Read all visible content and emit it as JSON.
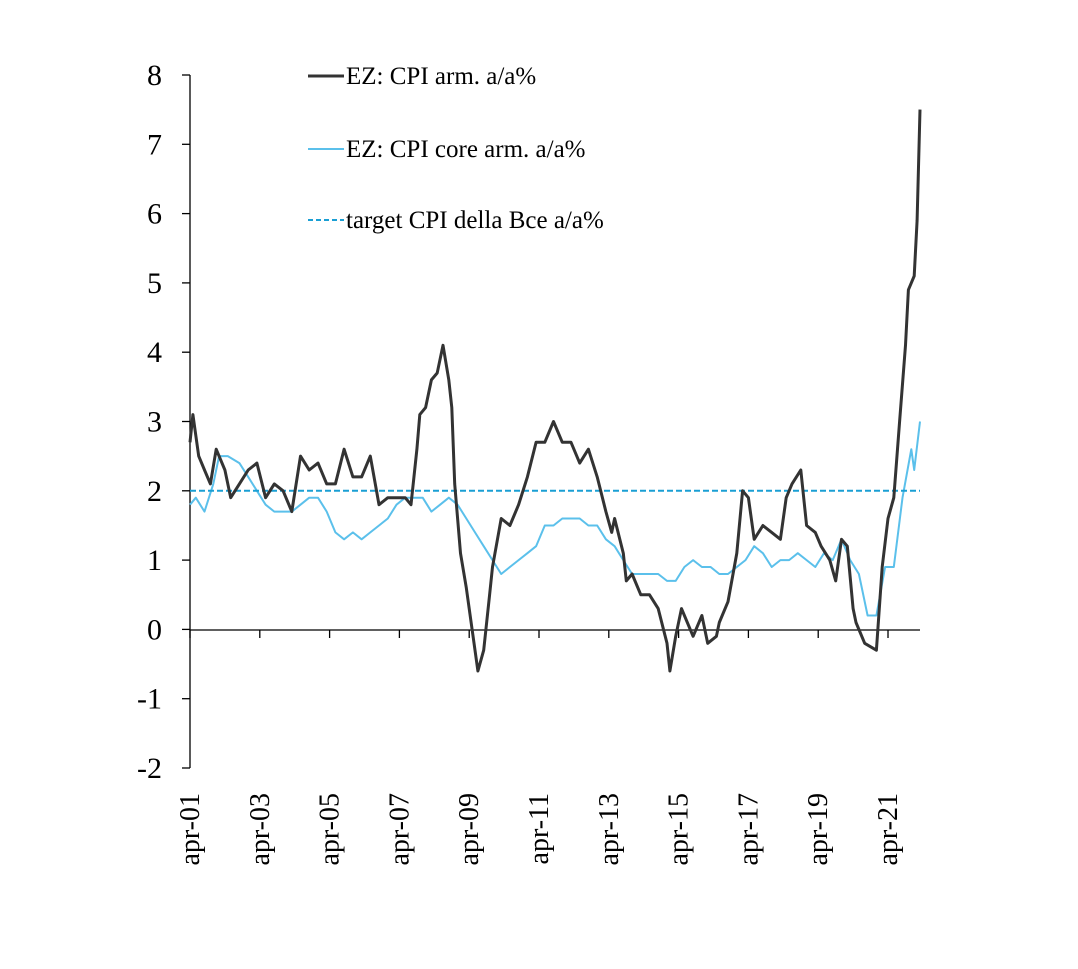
{
  "chart_data": {
    "type": "line",
    "title": "",
    "xlabel": "",
    "ylabel": "",
    "ylim": [
      -2,
      8
    ],
    "yticks": [
      "8",
      "7",
      "6",
      "5",
      "4",
      "3",
      "2",
      "1",
      "0",
      "-1",
      "-2"
    ],
    "x_range": [
      "2001-04",
      "2022-03"
    ],
    "xticks": [
      "apr-01",
      "apr-03",
      "apr-05",
      "apr-07",
      "apr-09",
      "apr-11",
      "apr-13",
      "apr-15",
      "apr-17",
      "apr-19",
      "apr-21"
    ],
    "grid": false,
    "legend_position": "top",
    "series": [
      {
        "name": "EZ: CPI arm. a/a%",
        "color": "#333333",
        "style": "solid",
        "points": [
          [
            "2001-04",
            2.7
          ],
          [
            "2001-05",
            3.1
          ],
          [
            "2001-06",
            2.8
          ],
          [
            "2001-07",
            2.5
          ],
          [
            "2001-09",
            2.3
          ],
          [
            "2001-11",
            2.1
          ],
          [
            "2002-01",
            2.6
          ],
          [
            "2002-04",
            2.3
          ],
          [
            "2002-06",
            1.9
          ],
          [
            "2002-09",
            2.1
          ],
          [
            "2002-12",
            2.3
          ],
          [
            "2003-03",
            2.4
          ],
          [
            "2003-06",
            1.9
          ],
          [
            "2003-09",
            2.1
          ],
          [
            "2003-12",
            2.0
          ],
          [
            "2004-03",
            1.7
          ],
          [
            "2004-06",
            2.5
          ],
          [
            "2004-09",
            2.3
          ],
          [
            "2004-12",
            2.4
          ],
          [
            "2005-03",
            2.1
          ],
          [
            "2005-06",
            2.1
          ],
          [
            "2005-09",
            2.6
          ],
          [
            "2005-12",
            2.2
          ],
          [
            "2006-03",
            2.2
          ],
          [
            "2006-06",
            2.5
          ],
          [
            "2006-09",
            1.8
          ],
          [
            "2006-12",
            1.9
          ],
          [
            "2007-03",
            1.9
          ],
          [
            "2007-06",
            1.9
          ],
          [
            "2007-08",
            1.8
          ],
          [
            "2007-10",
            2.6
          ],
          [
            "2007-11",
            3.1
          ],
          [
            "2008-01",
            3.2
          ],
          [
            "2008-03",
            3.6
          ],
          [
            "2008-05",
            3.7
          ],
          [
            "2008-07",
            4.1
          ],
          [
            "2008-09",
            3.6
          ],
          [
            "2008-10",
            3.2
          ],
          [
            "2008-11",
            2.1
          ],
          [
            "2008-12",
            1.6
          ],
          [
            "2009-01",
            1.1
          ],
          [
            "2009-03",
            0.6
          ],
          [
            "2009-05",
            0.0
          ],
          [
            "2009-07",
            -0.6
          ],
          [
            "2009-09",
            -0.3
          ],
          [
            "2009-11",
            0.5
          ],
          [
            "2009-12",
            0.9
          ],
          [
            "2010-03",
            1.6
          ],
          [
            "2010-06",
            1.5
          ],
          [
            "2010-09",
            1.8
          ],
          [
            "2010-12",
            2.2
          ],
          [
            "2011-03",
            2.7
          ],
          [
            "2011-06",
            2.7
          ],
          [
            "2011-09",
            3.0
          ],
          [
            "2011-12",
            2.7
          ],
          [
            "2012-03",
            2.7
          ],
          [
            "2012-06",
            2.4
          ],
          [
            "2012-09",
            2.6
          ],
          [
            "2012-12",
            2.2
          ],
          [
            "2013-03",
            1.7
          ],
          [
            "2013-05",
            1.4
          ],
          [
            "2013-06",
            1.6
          ],
          [
            "2013-09",
            1.1
          ],
          [
            "2013-10",
            0.7
          ],
          [
            "2013-12",
            0.8
          ],
          [
            "2014-03",
            0.5
          ],
          [
            "2014-06",
            0.5
          ],
          [
            "2014-09",
            0.3
          ],
          [
            "2014-12",
            -0.2
          ],
          [
            "2015-01",
            -0.6
          ],
          [
            "2015-03",
            -0.1
          ],
          [
            "2015-05",
            0.3
          ],
          [
            "2015-06",
            0.2
          ],
          [
            "2015-09",
            -0.1
          ],
          [
            "2015-12",
            0.2
          ],
          [
            "2016-02",
            -0.2
          ],
          [
            "2016-05",
            -0.1
          ],
          [
            "2016-06",
            0.1
          ],
          [
            "2016-09",
            0.4
          ],
          [
            "2016-12",
            1.1
          ],
          [
            "2017-02",
            2.0
          ],
          [
            "2017-04",
            1.9
          ],
          [
            "2017-06",
            1.3
          ],
          [
            "2017-09",
            1.5
          ],
          [
            "2017-12",
            1.4
          ],
          [
            "2018-03",
            1.3
          ],
          [
            "2018-05",
            1.9
          ],
          [
            "2018-07",
            2.1
          ],
          [
            "2018-10",
            2.3
          ],
          [
            "2018-12",
            1.5
          ],
          [
            "2019-03",
            1.4
          ],
          [
            "2019-05",
            1.2
          ],
          [
            "2019-08",
            1.0
          ],
          [
            "2019-10",
            0.7
          ],
          [
            "2019-12",
            1.3
          ],
          [
            "2020-02",
            1.2
          ],
          [
            "2020-04",
            0.3
          ],
          [
            "2020-05",
            0.1
          ],
          [
            "2020-08",
            -0.2
          ],
          [
            "2020-12",
            -0.3
          ],
          [
            "2021-02",
            0.9
          ],
          [
            "2021-04",
            1.6
          ],
          [
            "2021-06",
            1.9
          ],
          [
            "2021-08",
            3.0
          ],
          [
            "2021-10",
            4.1
          ],
          [
            "2021-11",
            4.9
          ],
          [
            "2021-12",
            5.0
          ],
          [
            "2022-01",
            5.1
          ],
          [
            "2022-02",
            5.9
          ],
          [
            "2022-03",
            7.5
          ]
        ]
      },
      {
        "name": "EZ: CPI core arm. a/a%",
        "color": "#5bc0eb",
        "style": "solid",
        "points": [
          [
            "2001-04",
            1.8
          ],
          [
            "2001-06",
            1.9
          ],
          [
            "2001-09",
            1.7
          ],
          [
            "2001-12",
            2.1
          ],
          [
            "2002-02",
            2.5
          ],
          [
            "2002-05",
            2.5
          ],
          [
            "2002-09",
            2.4
          ],
          [
            "2002-12",
            2.2
          ],
          [
            "2003-03",
            2.0
          ],
          [
            "2003-06",
            1.8
          ],
          [
            "2003-09",
            1.7
          ],
          [
            "2003-12",
            1.7
          ],
          [
            "2004-03",
            1.7
          ],
          [
            "2004-06",
            1.8
          ],
          [
            "2004-09",
            1.9
          ],
          [
            "2004-12",
            1.9
          ],
          [
            "2005-03",
            1.7
          ],
          [
            "2005-06",
            1.4
          ],
          [
            "2005-09",
            1.3
          ],
          [
            "2005-12",
            1.4
          ],
          [
            "2006-03",
            1.3
          ],
          [
            "2006-06",
            1.4
          ],
          [
            "2006-09",
            1.5
          ],
          [
            "2006-12",
            1.6
          ],
          [
            "2007-03",
            1.8
          ],
          [
            "2007-06",
            1.9
          ],
          [
            "2007-09",
            1.9
          ],
          [
            "2007-12",
            1.9
          ],
          [
            "2008-03",
            1.7
          ],
          [
            "2008-06",
            1.8
          ],
          [
            "2008-09",
            1.9
          ],
          [
            "2008-12",
            1.8
          ],
          [
            "2009-03",
            1.6
          ],
          [
            "2009-06",
            1.4
          ],
          [
            "2009-09",
            1.2
          ],
          [
            "2009-12",
            1.0
          ],
          [
            "2010-03",
            0.8
          ],
          [
            "2010-06",
            0.9
          ],
          [
            "2010-09",
            1.0
          ],
          [
            "2010-12",
            1.1
          ],
          [
            "2011-03",
            1.2
          ],
          [
            "2011-06",
            1.5
          ],
          [
            "2011-09",
            1.5
          ],
          [
            "2011-12",
            1.6
          ],
          [
            "2012-03",
            1.6
          ],
          [
            "2012-06",
            1.6
          ],
          [
            "2012-09",
            1.5
          ],
          [
            "2012-12",
            1.5
          ],
          [
            "2013-03",
            1.3
          ],
          [
            "2013-06",
            1.2
          ],
          [
            "2013-09",
            1.0
          ],
          [
            "2013-12",
            0.8
          ],
          [
            "2014-03",
            0.8
          ],
          [
            "2014-06",
            0.8
          ],
          [
            "2014-09",
            0.8
          ],
          [
            "2014-12",
            0.7
          ],
          [
            "2015-03",
            0.7
          ],
          [
            "2015-06",
            0.9
          ],
          [
            "2015-09",
            1.0
          ],
          [
            "2015-12",
            0.9
          ],
          [
            "2016-03",
            0.9
          ],
          [
            "2016-06",
            0.8
          ],
          [
            "2016-09",
            0.8
          ],
          [
            "2016-12",
            0.9
          ],
          [
            "2017-03",
            1.0
          ],
          [
            "2017-06",
            1.2
          ],
          [
            "2017-09",
            1.1
          ],
          [
            "2017-12",
            0.9
          ],
          [
            "2018-03",
            1.0
          ],
          [
            "2018-06",
            1.0
          ],
          [
            "2018-09",
            1.1
          ],
          [
            "2018-12",
            1.0
          ],
          [
            "2019-03",
            0.9
          ],
          [
            "2019-06",
            1.1
          ],
          [
            "2019-09",
            1.0
          ],
          [
            "2019-12",
            1.3
          ],
          [
            "2020-03",
            1.0
          ],
          [
            "2020-06",
            0.8
          ],
          [
            "2020-09",
            0.2
          ],
          [
            "2020-12",
            0.2
          ],
          [
            "2021-03",
            0.9
          ],
          [
            "2021-06",
            0.9
          ],
          [
            "2021-09",
            1.9
          ],
          [
            "2021-12",
            2.6
          ],
          [
            "2022-01",
            2.3
          ],
          [
            "2022-03",
            3.0
          ]
        ]
      },
      {
        "name": "target CPI della Bce a/a%",
        "color": "#1a9fd4",
        "style": "dashed",
        "points": [
          [
            "2001-04",
            2.0
          ],
          [
            "2022-03",
            2.0
          ]
        ]
      }
    ]
  }
}
